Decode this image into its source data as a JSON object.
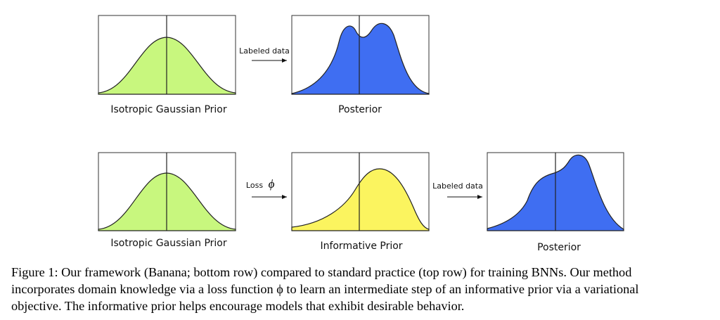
{
  "figure": {
    "top_row": {
      "prior_label": "Isotropic Gaussian Prior",
      "arrow_label": "Labeled data",
      "posterior_label": "Posterior"
    },
    "bottom_row": {
      "prior_label": "Isotropic Gaussian Prior",
      "arrow1_label": "Loss",
      "arrow1_symbol": "ϕ",
      "informative_label": "Informative Prior",
      "arrow2_label": "Labeled data",
      "posterior_label": "Posterior"
    },
    "caption": {
      "lines": [
        "Figure 1: Our framework (Banana; bottom row) compared to standard practice (top row) for training BNNs. Our method",
        "incorporates domain knowledge via a loss function ϕ to learn an intermediate step of an informative prior via a variational",
        "objective. The informative prior helps encourage models that exhibit desirable behavior."
      ]
    }
  }
}
